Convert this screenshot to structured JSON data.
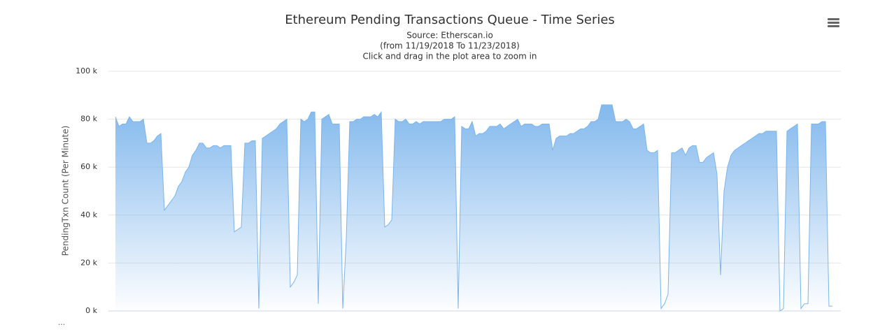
{
  "chart_data": {
    "type": "area",
    "title": "Ethereum Pending Transactions Queue - Time Series",
    "subtitle": [
      "Source: Etherscan.io",
      "(from 11/19/2018 To 11/23/2018)",
      "Click and drag in the plot area to zoom in"
    ],
    "y_label": "PendingTxn Count (Per Minute)",
    "footer_note": "...",
    "color": "#7cb5ec",
    "grid": true,
    "ylim": [
      0,
      100000
    ],
    "yticks": [
      {
        "value": 0,
        "label": "0 k"
      },
      {
        "value": 20000,
        "label": "20 k"
      },
      {
        "value": 40000,
        "label": "40 k"
      },
      {
        "value": 60000,
        "label": "60 k"
      },
      {
        "value": 80000,
        "label": "80 k"
      },
      {
        "value": 100000,
        "label": "100 k"
      }
    ],
    "values": [
      81000,
      77000,
      78000,
      78000,
      81000,
      79000,
      79000,
      79000,
      80000,
      70000,
      70000,
      71000,
      73000,
      74000,
      42000,
      44000,
      46000,
      48000,
      52000,
      54000,
      58000,
      60000,
      65000,
      67000,
      70000,
      70000,
      68000,
      68000,
      69000,
      69000,
      68000,
      69000,
      69000,
      69000,
      33000,
      34000,
      35000,
      70000,
      70000,
      71000,
      71000,
      1000,
      72000,
      73000,
      74000,
      75000,
      76000,
      78000,
      79000,
      80000,
      10000,
      12000,
      15000,
      80000,
      79000,
      80000,
      83000,
      83000,
      3000,
      80000,
      81000,
      82000,
      78000,
      78000,
      78000,
      1000,
      30000,
      79000,
      79000,
      80000,
      80000,
      81000,
      81000,
      81000,
      82000,
      81000,
      83000,
      35000,
      36000,
      38000,
      80000,
      79000,
      79000,
      80000,
      78000,
      78000,
      79000,
      78000,
      79000,
      79000,
      79000,
      79000,
      79000,
      79000,
      80000,
      80000,
      80000,
      81000,
      1000,
      77000,
      76000,
      76000,
      79000,
      73000,
      74000,
      74000,
      75000,
      77000,
      77000,
      77000,
      78000,
      76000,
      77000,
      78000,
      79000,
      80000,
      77000,
      78000,
      78000,
      78000,
      77000,
      77000,
      78000,
      78000,
      78000,
      67000,
      72000,
      73000,
      73000,
      73000,
      74000,
      74000,
      75000,
      76000,
      76000,
      77000,
      79000,
      79000,
      80000,
      86000,
      86000,
      86000,
      86000,
      79000,
      79000,
      79000,
      80000,
      79000,
      76000,
      76000,
      77000,
      78000,
      67000,
      66000,
      66000,
      67000,
      1000,
      3000,
      7000,
      66000,
      66000,
      67000,
      68000,
      65000,
      68000,
      69000,
      69000,
      62000,
      62000,
      64000,
      65000,
      66000,
      57000,
      15000,
      50000,
      60000,
      65000,
      67000,
      68000,
      69000,
      70000,
      71000,
      72000,
      73000,
      74000,
      74000,
      75000,
      75000,
      75000,
      75000,
      0,
      1000,
      75000,
      76000,
      77000,
      78000,
      1000,
      3000,
      3000,
      78000,
      78000,
      78000,
      79000,
      79000,
      2000,
      2000
    ]
  }
}
